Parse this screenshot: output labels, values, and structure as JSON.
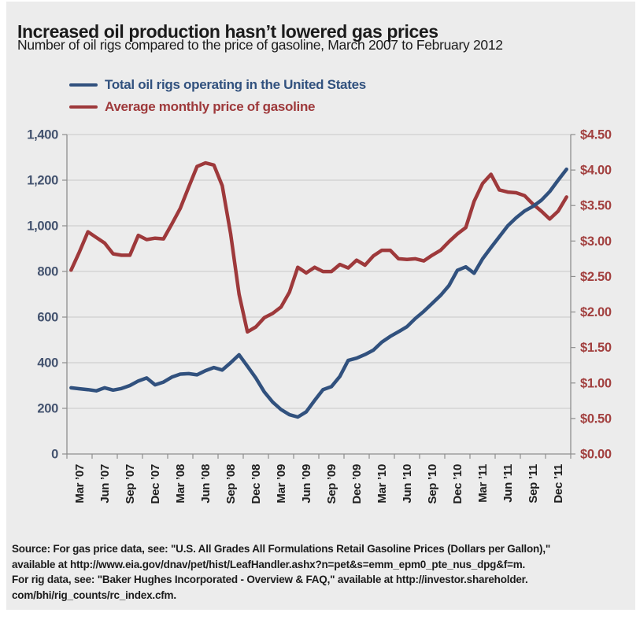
{
  "page": {
    "background": "#ffffff",
    "panel_background": "#ececec"
  },
  "header": {
    "title": "Increased oil production hasn’t lowered gas prices",
    "subtitle": "Number of oil rigs compared to the price of gasoline, March 2007 to February 2012"
  },
  "legend": [
    {
      "label": "Total oil rigs operating in the United States",
      "color": "#31517e"
    },
    {
      "label": "Average monthly price of gasoline",
      "color": "#9e393b"
    }
  ],
  "source": {
    "lines": [
      "Source: For gas price data, see: \"U.S. All Grades All Formulations Retail Gasoline Prices (Dollars per Gallon),\"",
      "available at http://www.eia.gov/dnav/pet/hist/LeafHandler.ashx?n=pet&s=emm_epm0_pte_nus_dpg&f=m.",
      "For rig data, see: \"Baker Hughes Incorporated - Overview & FAQ,\" available at http://investor.shareholder.",
      "com/bhi/rig_counts/rc_index.cfm."
    ]
  },
  "chart_data": {
    "type": "line",
    "title": "Increased oil production hasn’t lowered gas prices",
    "subtitle": "Number of oil rigs compared to the price of gasoline, March 2007 to February 2012",
    "x_start": "March 2007",
    "x_end": "February 2012",
    "x_tick_labels": [
      "Mar ’07",
      "Jun ’07",
      "Sep ’07",
      "Dec ’07",
      "Mar ’08",
      "Jun ’08",
      "Sep ’08",
      "Dec ’08",
      "Mar ’09",
      "Jun ’09",
      "Sep ’09",
      "Dec ’09",
      "Mar ’10",
      "Jun ’10",
      "Sep ’10",
      "Dec ’10",
      "Mar ’11",
      "Jun ’11",
      "Sep ’11",
      "Dec ’11"
    ],
    "grid": "horizontal",
    "legend_position": "top-left",
    "left_axis": {
      "min": 0,
      "max": 1400,
      "step": 200,
      "tick_labels": [
        "0",
        "200",
        "400",
        "600",
        "800",
        "1,000",
        "1,200",
        "1,400"
      ],
      "color": "#44536f"
    },
    "right_axis": {
      "min": 0,
      "max": 4.5,
      "step": 0.5,
      "tick_labels": [
        "$0.00",
        "$0.50",
        "$1.00",
        "$1.50",
        "$2.00",
        "$2.50",
        "$3.00",
        "$3.50",
        "$4.00",
        "$4.50"
      ],
      "color": "#a2403f"
    },
    "series": [
      {
        "name": "Total oil rigs operating in the United States",
        "axis": "left",
        "color": "#31517e",
        "values": [
          290,
          286,
          282,
          277,
          290,
          280,
          287,
          300,
          320,
          333,
          303,
          315,
          337,
          350,
          352,
          347,
          365,
          379,
          368,
          400,
          435,
          385,
          333,
          272,
          228,
          195,
          172,
          162,
          185,
          235,
          282,
          295,
          340,
          410,
          420,
          436,
          455,
          490,
          515,
          536,
          558,
          594,
          625,
          660,
          695,
          738,
          805,
          820,
          792,
          855,
          905,
          952,
          1000,
          1035,
          1065,
          1085,
          1112,
          1150,
          1200,
          1248
        ]
      },
      {
        "name": "Average monthly price of gasoline",
        "axis": "right",
        "color": "#9e393b",
        "values": [
          2.59,
          2.85,
          3.13,
          3.05,
          2.97,
          2.82,
          2.8,
          2.8,
          3.08,
          3.02,
          3.04,
          3.03,
          3.24,
          3.46,
          3.76,
          4.05,
          4.1,
          4.07,
          3.78,
          3.1,
          2.25,
          1.72,
          1.79,
          1.92,
          1.98,
          2.07,
          2.28,
          2.63,
          2.55,
          2.63,
          2.57,
          2.57,
          2.67,
          2.62,
          2.73,
          2.66,
          2.79,
          2.87,
          2.87,
          2.75,
          2.74,
          2.75,
          2.72,
          2.8,
          2.87,
          2.99,
          3.1,
          3.19,
          3.56,
          3.81,
          3.94,
          3.72,
          3.69,
          3.68,
          3.64,
          3.52,
          3.42,
          3.31,
          3.42,
          3.62
        ]
      }
    ]
  }
}
